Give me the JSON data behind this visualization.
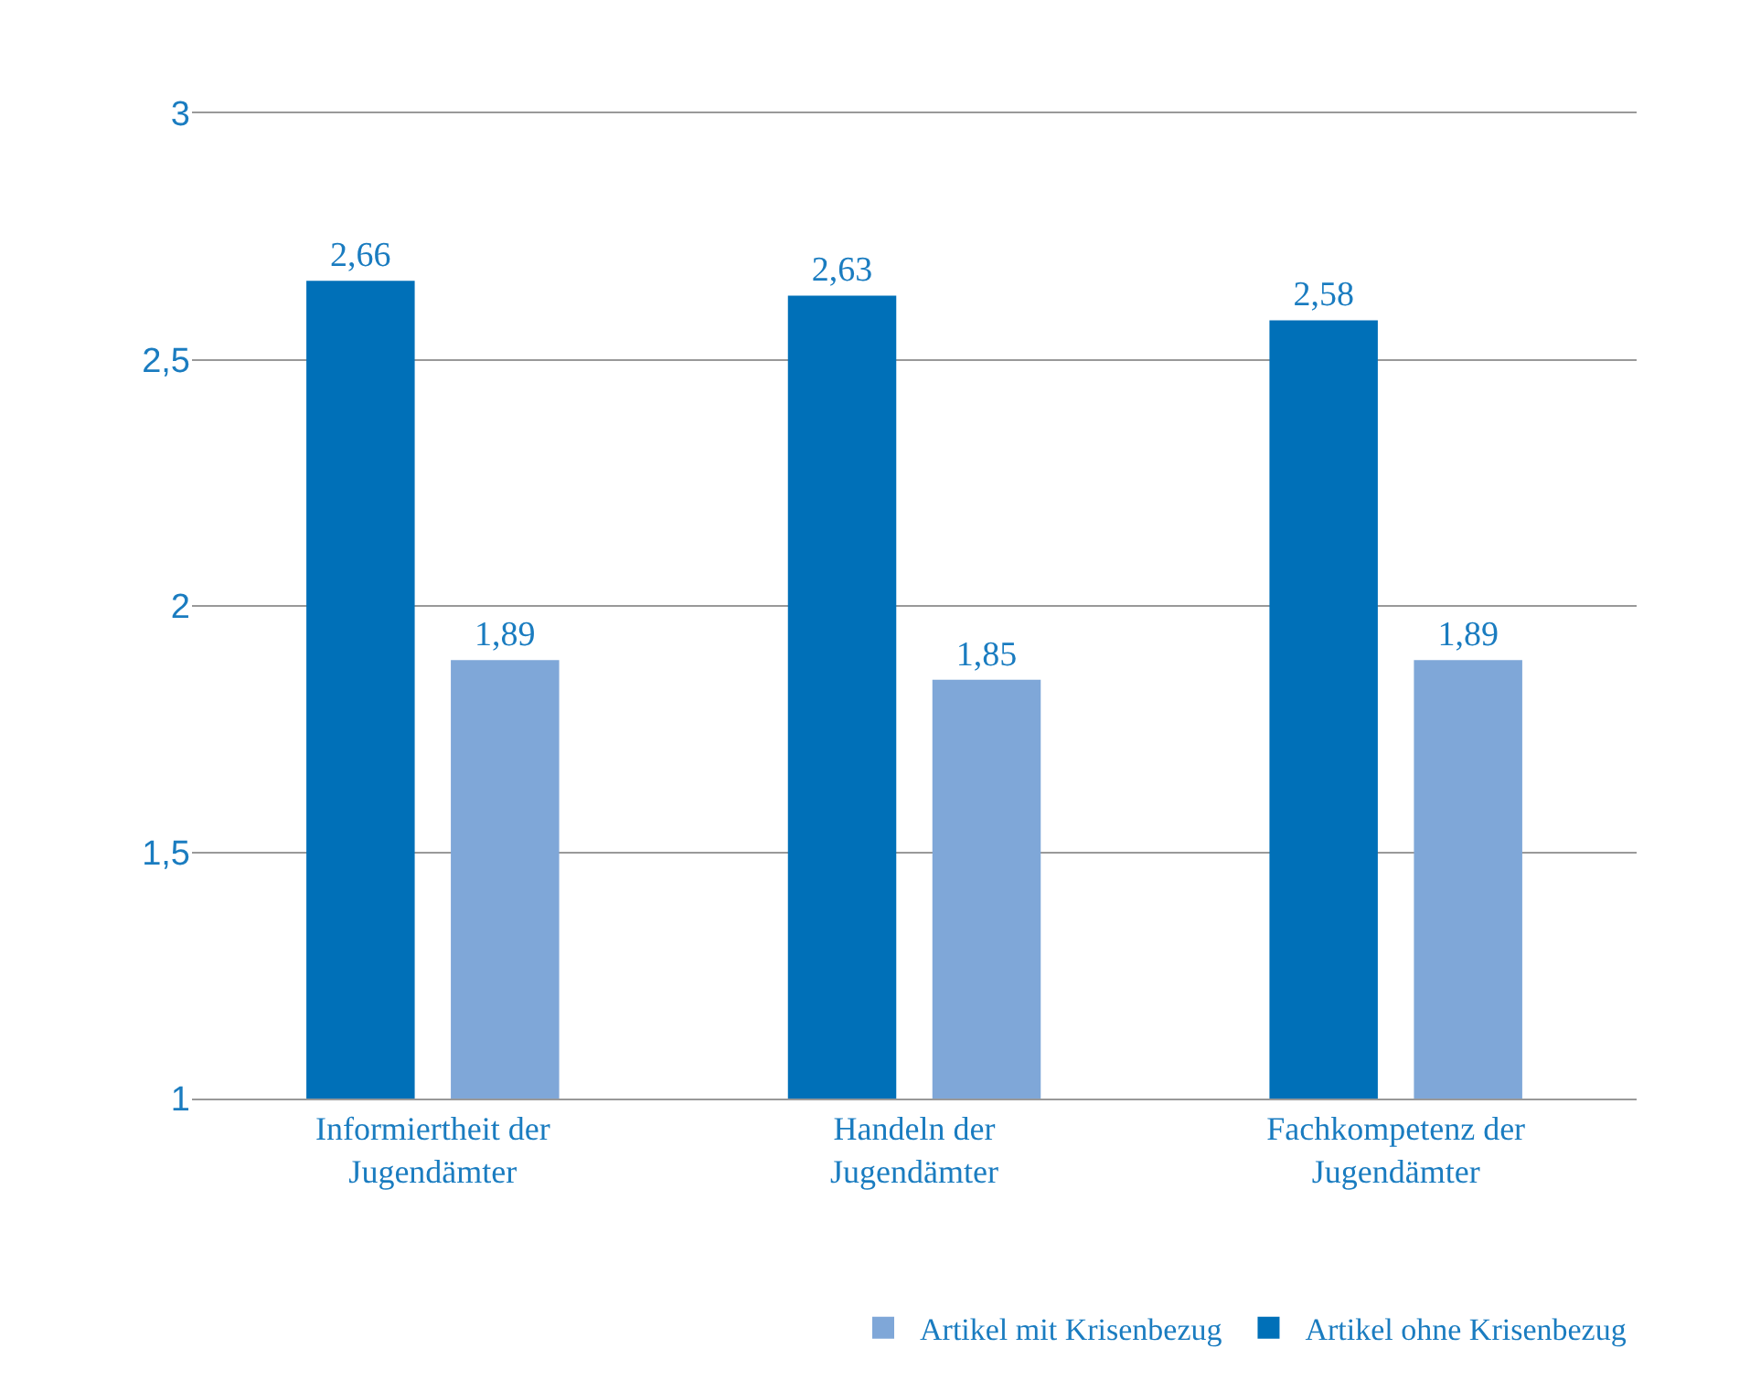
{
  "chart_data": {
    "type": "bar",
    "categories": [
      "Informiertheit der Jugendämter",
      "Handeln der Jugendämter",
      "Fachkompetenz der Jugendämter"
    ],
    "series": [
      {
        "name": "Artikel ohne Krisenbezug",
        "color": "#0070b8",
        "values": [
          2.66,
          2.63,
          2.58
        ],
        "value_labels": [
          "2,66",
          "2,63",
          "2,58"
        ]
      },
      {
        "name": "Artikel mit Krisenbezug",
        "color": "#7fa7d8",
        "values": [
          1.89,
          1.85,
          1.89
        ],
        "value_labels": [
          "1,89",
          "1,85",
          "1,89"
        ]
      }
    ],
    "ylim": [
      1,
      3
    ],
    "yticks": [
      1,
      {
        "value": 1.5,
        "label": "1,5"
      },
      2,
      {
        "value": 2.5,
        "label": "2,5"
      },
      3
    ],
    "grid": "y",
    "legend": "bottom"
  }
}
